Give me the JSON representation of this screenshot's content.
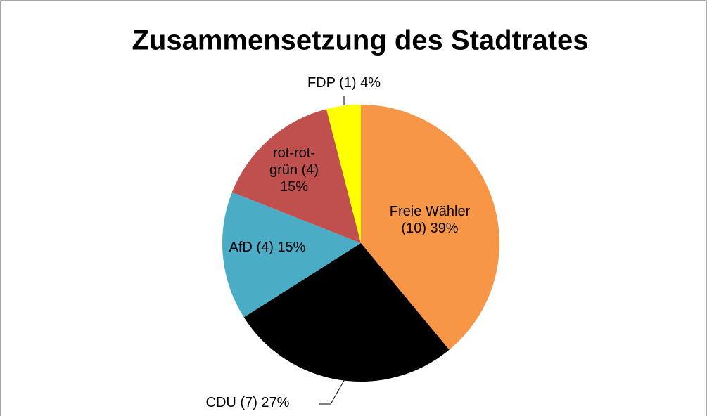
{
  "chart_data": {
    "type": "pie",
    "title": "Zusammensetzung des Stadtrates",
    "categories": [
      "Freie Wähler",
      "CDU",
      "AfD",
      "rot-rot-grün",
      "FDP"
    ],
    "values": [
      39,
      27,
      15,
      15,
      4
    ],
    "labels": [
      "Freie Wähler (10) 39%",
      "CDU (7) 27%",
      "AfD (4) 15%",
      "rot-rot-grün (4) 15%",
      "FDP (1) 4%"
    ],
    "colors": [
      "#f79646",
      "#000000",
      "#4bacc6",
      "#c0504d",
      "#ffff00"
    ]
  }
}
